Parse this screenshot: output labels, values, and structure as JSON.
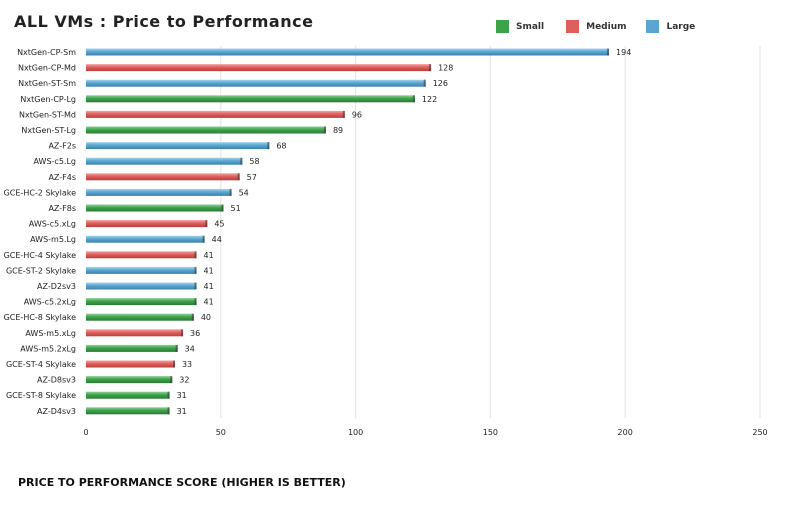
{
  "chart_data": {
    "type": "bar",
    "orientation": "horizontal",
    "title": "ALL VMs : Price to Performance",
    "xlabel": "PRICE TO PERFORMANCE SCORE (HIGHER IS BETTER)",
    "ylabel": "",
    "xlim": [
      0,
      250
    ],
    "xticks": [
      0,
      50,
      100,
      150,
      200,
      250
    ],
    "grid": "vertical",
    "legend_position": "top-right",
    "legend": [
      {
        "name": "Small",
        "color": "#3da34a"
      },
      {
        "name": "Medium",
        "color": "#e05f5d"
      },
      {
        "name": "Large",
        "color": "#5aa6d0"
      }
    ],
    "bars": [
      {
        "label": "NxtGen-CP-Sm",
        "value": 194,
        "series": "Large"
      },
      {
        "label": "NxtGen-CP-Md",
        "value": 128,
        "series": "Medium"
      },
      {
        "label": "NxtGen-ST-Sm",
        "value": 126,
        "series": "Large"
      },
      {
        "label": "NxtGen-CP-Lg",
        "value": 122,
        "series": "Small"
      },
      {
        "label": "NxtGen-ST-Md",
        "value": 96,
        "series": "Medium"
      },
      {
        "label": "NxtGen-ST-Lg",
        "value": 89,
        "series": "Small"
      },
      {
        "label": "AZ-F2s",
        "value": 68,
        "series": "Large"
      },
      {
        "label": "AWS-c5.Lg",
        "value": 58,
        "series": "Large"
      },
      {
        "label": "AZ-F4s",
        "value": 57,
        "series": "Medium"
      },
      {
        "label": "GCE-HC-2  Skylake",
        "value": 54,
        "series": "Large"
      },
      {
        "label": "AZ-F8s",
        "value": 51,
        "series": "Small"
      },
      {
        "label": "AWS-c5.xLg",
        "value": 45,
        "series": "Medium"
      },
      {
        "label": "AWS-m5.Lg",
        "value": 44,
        "series": "Large"
      },
      {
        "label": "GCE-HC-4  Skylake",
        "value": 41,
        "series": "Medium"
      },
      {
        "label": "GCE-ST-2  Skylake",
        "value": 41,
        "series": "Large"
      },
      {
        "label": "AZ-D2sv3",
        "value": 41,
        "series": "Large"
      },
      {
        "label": "AWS-c5.2xLg",
        "value": 41,
        "series": "Small"
      },
      {
        "label": "GCE-HC-8  Skylake",
        "value": 40,
        "series": "Small"
      },
      {
        "label": "AWS-m5.xLg",
        "value": 36,
        "series": "Medium"
      },
      {
        "label": "AWS-m5.2xLg",
        "value": 34,
        "series": "Small"
      },
      {
        "label": "GCE-ST-4  Skylake",
        "value": 33,
        "series": "Medium"
      },
      {
        "label": "AZ-D8sv3",
        "value": 32,
        "series": "Small"
      },
      {
        "label": "GCE-ST-8  Skylake",
        "value": 31,
        "series": "Small"
      },
      {
        "label": "AZ-D4sv3",
        "value": 31,
        "series": "Small"
      }
    ]
  }
}
